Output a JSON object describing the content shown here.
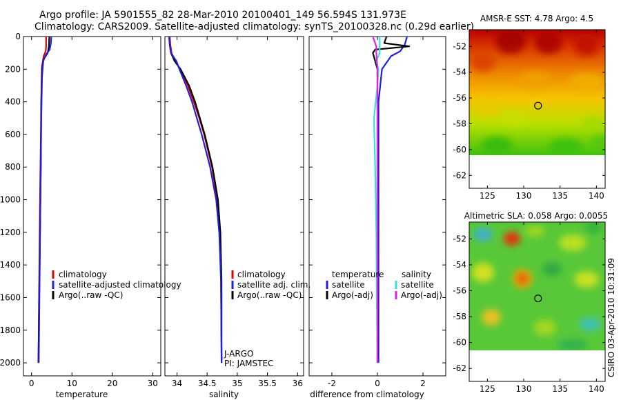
{
  "header": {
    "line1": "Argo profile: JA 5901555_82 28-Mar-2010 20100401_149 56.594S 131.973E",
    "line2": "Climatology: CARS2009. Satellite-adjusted climatology: synTS_20100328.nc (0.29d earlier)"
  },
  "credit": "CSIRO 03-Apr-2010 10:31:09",
  "colors": {
    "red": "#dd0000",
    "blue": "#1f1fe0",
    "black": "#000000",
    "cyan": "#33e0e0",
    "magenta": "#e020e0"
  },
  "chart_data": [
    {
      "type": "line",
      "id": "temperature",
      "xlabel": "temperature",
      "ylabel": "",
      "xlim": [
        -2,
        32
      ],
      "ylim": [
        0,
        2080
      ],
      "y_reversed": true,
      "xticks": [
        0,
        10,
        20,
        30
      ],
      "yticks": [
        0,
        200,
        400,
        600,
        800,
        1000,
        1200,
        1400,
        1600,
        1800,
        2000
      ],
      "legend": [
        "climatology",
        "satellite-adjusted climatology",
        "Argo(..raw -QC)"
      ],
      "series": [
        {
          "name": "climatology",
          "color": "red",
          "depth": [
            0,
            60,
            90,
            120,
            180,
            250,
            400,
            600,
            1000,
            1500,
            2000
          ],
          "values": [
            3.6,
            3.6,
            3.5,
            3.0,
            2.6,
            2.5,
            2.4,
            2.3,
            2.1,
            1.9,
            1.7
          ]
        },
        {
          "name": "Argo(..raw -QC)",
          "color": "black",
          "depth": [
            0,
            60,
            100,
            140,
            200,
            400,
            800,
            1200,
            1600,
            2000
          ],
          "values": [
            4.4,
            4.3,
            4.0,
            3.0,
            2.6,
            2.4,
            2.3,
            2.1,
            1.9,
            1.7
          ]
        },
        {
          "name": "satellite-adjusted climatology",
          "color": "blue",
          "depth": [
            0,
            40,
            80,
            110,
            150,
            250,
            500,
            1000,
            1500,
            2000
          ],
          "values": [
            4.9,
            4.8,
            4.5,
            3.6,
            2.9,
            2.6,
            2.4,
            2.2,
            2.0,
            1.8
          ]
        }
      ]
    },
    {
      "type": "line",
      "id": "salinity",
      "xlabel": "salinity",
      "ylabel": "",
      "xlim": [
        33.8,
        36.1
      ],
      "ylim": [
        0,
        2080
      ],
      "y_reversed": true,
      "xticks": [
        34,
        34.5,
        35,
        35.5,
        36
      ],
      "yticks": [
        0,
        200,
        400,
        600,
        800,
        1000,
        1200,
        1400,
        1600,
        1800,
        2000
      ],
      "legend": [
        "climatology",
        "satellite adj. clim.",
        "Argo(..raw -QC)"
      ],
      "annotations": [
        "J-ARGO",
        "PI: JAMSTEC"
      ],
      "series": [
        {
          "name": "climatology",
          "color": "red",
          "depth": [
            0,
            50,
            100,
            150,
            200,
            300,
            400,
            500,
            600,
            800,
            1000,
            1200,
            1500,
            2000
          ],
          "values": [
            33.88,
            33.89,
            33.91,
            33.97,
            34.05,
            34.18,
            34.28,
            34.37,
            34.45,
            34.58,
            34.67,
            34.71,
            34.73,
            34.74
          ]
        },
        {
          "name": "Argo(..raw -QC)",
          "color": "black",
          "depth": [
            0,
            50,
            100,
            150,
            200,
            300,
            400,
            500,
            600,
            800,
            1000,
            1200,
            1500,
            2000
          ],
          "values": [
            33.87,
            33.88,
            33.9,
            33.96,
            34.06,
            34.2,
            34.3,
            34.38,
            34.46,
            34.59,
            34.68,
            34.72,
            34.74,
            34.74
          ]
        },
        {
          "name": "satellite adj. clim.",
          "color": "blue",
          "depth": [
            0,
            50,
            100,
            150,
            200,
            300,
            400,
            500,
            600,
            800,
            1000,
            1200,
            1500,
            2000
          ],
          "values": [
            33.87,
            33.88,
            33.9,
            33.99,
            34.04,
            34.15,
            34.25,
            34.33,
            34.41,
            34.55,
            34.65,
            34.7,
            34.73,
            34.74
          ]
        }
      ]
    },
    {
      "type": "line",
      "id": "difference",
      "xlabel": "difference from climatology",
      "ylabel": "",
      "xlim": [
        -3,
        3
      ],
      "ylim": [
        0,
        2080
      ],
      "y_reversed": true,
      "xticks": [
        -2,
        0,
        2
      ],
      "yticks": [
        0,
        200,
        400,
        600,
        800,
        1000,
        1200,
        1400,
        1600,
        1800,
        2000
      ],
      "legend_headers": [
        "temperature",
        "salinity"
      ],
      "legend": [
        "satellite",
        "Argo(-adj)",
        "satellite",
        "Argo(-adj)"
      ],
      "series": [
        {
          "name": "temperature satellite",
          "color": "blue",
          "depth": [
            0,
            50,
            90,
            120,
            200,
            400,
            800,
            1400,
            2000
          ],
          "values": [
            1.3,
            1.2,
            1.0,
            0.6,
            0.2,
            0.05,
            0.05,
            0.05,
            0.05
          ]
        },
        {
          "name": "temperature Argo(-adj)",
          "color": "black",
          "depth": [
            0,
            40,
            60,
            80,
            100,
            200,
            400,
            1000,
            2000
          ],
          "values": [
            0.4,
            0.3,
            1.4,
            -0.1,
            -0.2,
            0.0,
            0.0,
            0.0,
            0.0
          ]
        },
        {
          "name": "salinity satellite",
          "color": "cyan",
          "depth": [
            0,
            100,
            150,
            200,
            300,
            500,
            800,
            1200,
            1600,
            2000
          ],
          "values": [
            0.1,
            0.1,
            -0.05,
            0.05,
            0.0,
            -0.15,
            -0.1,
            -0.05,
            -0.03,
            0.0
          ]
        },
        {
          "name": "salinity Argo(-adj)",
          "color": "magenta",
          "depth": [
            0,
            40,
            60,
            100,
            200,
            400,
            1000,
            2000
          ],
          "values": [
            -0.2,
            -0.1,
            -0.05,
            -0.05,
            0.0,
            0.0,
            0.0,
            0.0
          ]
        }
      ]
    },
    {
      "type": "heatmap",
      "id": "sst_map",
      "title": "AMSR-E SST: 4.78 Argo: 4.5",
      "xlim": [
        122.5,
        141.2
      ],
      "ylim": [
        -63,
        -50.7
      ],
      "xticks": [
        125,
        130,
        135,
        140
      ],
      "yticks": [
        -52,
        -54,
        -56,
        -58,
        -60,
        -62
      ],
      "data_extent_lat": [
        -60,
        -50.7
      ],
      "marker": {
        "lon": 131.973,
        "lat": -56.594
      }
    },
    {
      "type": "heatmap",
      "id": "sla_map",
      "title": "Altimetric SLA: 0.058 Argo: 0.0055",
      "xlim": [
        122.5,
        141.2
      ],
      "ylim": [
        -63,
        -50.7
      ],
      "xticks": [
        125,
        130,
        135,
        140
      ],
      "yticks": [
        -52,
        -54,
        -56,
        -58,
        -60,
        -62
      ],
      "data_extent_lat": [
        -60,
        -50.7
      ],
      "marker": {
        "lon": 131.973,
        "lat": -56.594
      }
    }
  ]
}
